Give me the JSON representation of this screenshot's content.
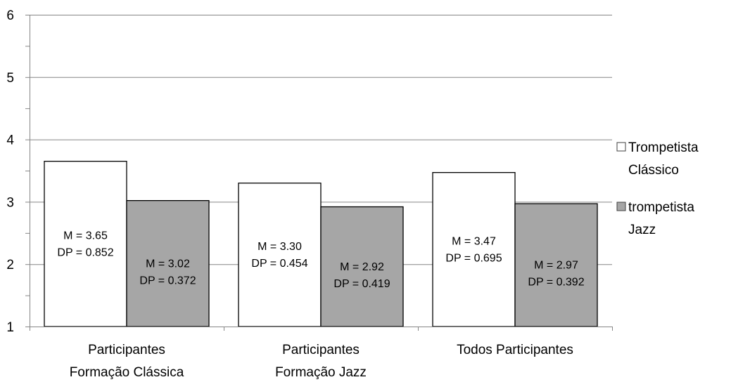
{
  "chart_data": {
    "type": "bar",
    "categories": [
      [
        "Participantes",
        "Formação Clássica"
      ],
      [
        "Participantes",
        "Formação Jazz"
      ],
      [
        "Todos Participantes"
      ]
    ],
    "series": [
      {
        "name": "Trompetista Clássico",
        "legend_lines": [
          "Trompetista",
          "Clássico"
        ],
        "color": "#ffffff",
        "values": [
          3.65,
          3.3,
          3.47
        ],
        "labels": [
          [
            "M = 3.65",
            "DP = 0.852"
          ],
          [
            "M = 3.30",
            "DP = 0.454"
          ],
          [
            "M = 3.47",
            "DP = 0.695"
          ]
        ]
      },
      {
        "name": "trompetista Jazz",
        "legend_lines": [
          "trompetista",
          "Jazz"
        ],
        "color": "#a6a6a6",
        "values": [
          3.02,
          2.92,
          2.97
        ],
        "labels": [
          [
            "M = 3.02",
            "DP = 0.372"
          ],
          [
            "M = 2.92",
            "DP = 0.419"
          ],
          [
            "M = 2.97",
            "DP = 0.392"
          ]
        ]
      }
    ],
    "ylim": [
      1,
      6
    ],
    "yticks": [
      1,
      2,
      3,
      4,
      5,
      6
    ],
    "grid": true,
    "legend_position": "right",
    "title": "",
    "xlabel": "",
    "ylabel": ""
  }
}
